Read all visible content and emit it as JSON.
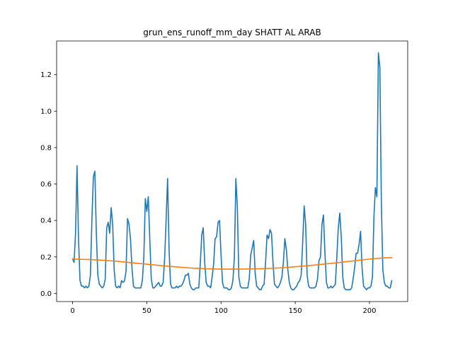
{
  "chart_data": {
    "type": "line",
    "title": "grun_ens_runoff_mm_day SHATT AL ARAB",
    "xlabel": "",
    "ylabel": "",
    "xlim": [
      -10.75,
      225.75
    ],
    "ylim": [
      -0.045,
      1.385
    ],
    "xticks": [
      0,
      50,
      100,
      150,
      200
    ],
    "yticks": [
      0.0,
      0.2,
      0.4,
      0.6,
      0.8,
      1.0,
      1.2
    ],
    "ytick_labels": [
      "0.0",
      "0.2",
      "0.4",
      "0.6",
      "0.8",
      "1.0",
      "1.2"
    ],
    "grid": false,
    "legend": "none",
    "series": [
      {
        "color": "#1f77b4",
        "x_start": 0,
        "values": [
          0.19,
          0.17,
          0.33,
          0.7,
          0.3,
          0.07,
          0.04,
          0.04,
          0.03,
          0.04,
          0.03,
          0.04,
          0.1,
          0.4,
          0.64,
          0.67,
          0.33,
          0.1,
          0.05,
          0.04,
          0.03,
          0.04,
          0.08,
          0.36,
          0.39,
          0.33,
          0.47,
          0.38,
          0.13,
          0.04,
          0.03,
          0.04,
          0.03,
          0.07,
          0.06,
          0.07,
          0.12,
          0.41,
          0.38,
          0.3,
          0.14,
          0.04,
          0.03,
          0.03,
          0.03,
          0.03,
          0.03,
          0.07,
          0.2,
          0.52,
          0.45,
          0.53,
          0.3,
          0.08,
          0.03,
          0.03,
          0.04,
          0.05,
          0.06,
          0.04,
          0.04,
          0.06,
          0.19,
          0.4,
          0.63,
          0.24,
          0.05,
          0.03,
          0.03,
          0.03,
          0.04,
          0.03,
          0.04,
          0.04,
          0.05,
          0.07,
          0.1,
          0.1,
          0.11,
          0.05,
          0.03,
          0.02,
          0.02,
          0.03,
          0.03,
          0.03,
          0.16,
          0.32,
          0.36,
          0.17,
          0.06,
          0.04,
          0.04,
          0.03,
          0.09,
          0.16,
          0.3,
          0.31,
          0.39,
          0.4,
          0.21,
          0.06,
          0.03,
          0.03,
          0.03,
          0.02,
          0.02,
          0.03,
          0.07,
          0.2,
          0.63,
          0.47,
          0.09,
          0.04,
          0.03,
          0.03,
          0.03,
          0.03,
          0.03,
          0.08,
          0.21,
          0.25,
          0.29,
          0.11,
          0.04,
          0.03,
          0.02,
          0.02,
          0.04,
          0.05,
          0.17,
          0.32,
          0.3,
          0.35,
          0.33,
          0.17,
          0.05,
          0.04,
          0.03,
          0.04,
          0.06,
          0.09,
          0.17,
          0.3,
          0.24,
          0.13,
          0.06,
          0.03,
          0.02,
          0.02,
          0.03,
          0.04,
          0.06,
          0.07,
          0.1,
          0.28,
          0.48,
          0.38,
          0.1,
          0.04,
          0.03,
          0.03,
          0.03,
          0.03,
          0.04,
          0.08,
          0.18,
          0.2,
          0.38,
          0.43,
          0.22,
          0.06,
          0.03,
          0.03,
          0.04,
          0.03,
          0.04,
          0.05,
          0.2,
          0.36,
          0.44,
          0.31,
          0.09,
          0.03,
          0.02,
          0.02,
          0.02,
          0.02,
          0.03,
          0.08,
          0.14,
          0.22,
          0.22,
          0.27,
          0.34,
          0.14,
          0.04,
          0.03,
          0.02,
          0.03,
          0.03,
          0.04,
          0.09,
          0.42,
          0.58,
          0.53,
          1.32,
          1.24,
          0.5,
          0.13,
          0.06,
          0.04,
          0.04,
          0.03,
          0.03,
          0.07
        ]
      },
      {
        "color": "#ff7f0e",
        "x": [
          0,
          10,
          20,
          30,
          40,
          50,
          60,
          70,
          80,
          90,
          100,
          110,
          120,
          130,
          140,
          150,
          160,
          170,
          180,
          190,
          200,
          210,
          215
        ],
        "values": [
          0.188,
          0.186,
          0.182,
          0.176,
          0.168,
          0.16,
          0.152,
          0.145,
          0.139,
          0.135,
          0.133,
          0.133,
          0.134,
          0.136,
          0.14,
          0.146,
          0.153,
          0.161,
          0.17,
          0.179,
          0.188,
          0.195,
          0.196
        ]
      }
    ]
  }
}
